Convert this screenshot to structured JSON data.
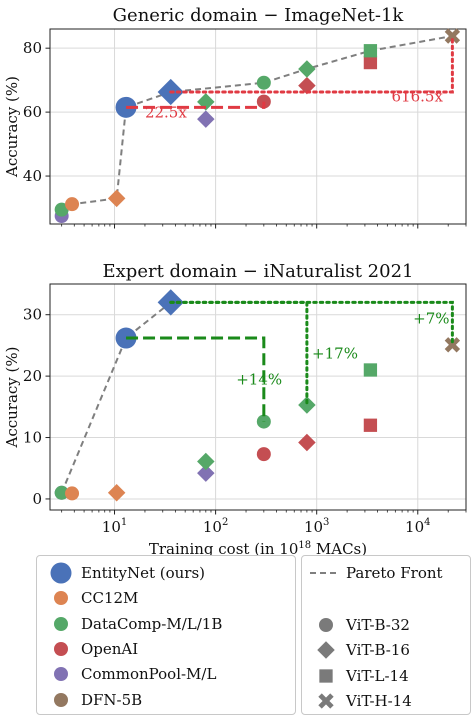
{
  "colors": {
    "entitynet": "#4a72b8",
    "cc12m": "#dd8452",
    "datacomp": "#55a868",
    "openai": "#c44e52",
    "commonpool": "#8172b3",
    "dfn": "#937860",
    "pareto": "#7f7f7f",
    "red_annot": "#e03a43",
    "green_annot": "#2ca02c",
    "darkgreen_annot": "#1a8a1a"
  },
  "chart_data": [
    {
      "type": "scatter",
      "title": "Generic domain − ImageNet-1k",
      "xlabel": "",
      "ylabel": "Accuracy (%)",
      "xscale": "log",
      "xlim": [
        2.3,
        30000
      ],
      "ylim": [
        25,
        86
      ],
      "yticks": [
        40,
        60,
        80
      ],
      "xticks": [
        10,
        100,
        1000,
        10000
      ],
      "show_xtick_labels": false,
      "grid": true,
      "points": [
        {
          "series": "CommonPool-M/L",
          "arch": "ViT-B-32",
          "x": 3,
          "y": 27.5
        },
        {
          "series": "DataComp-M/L/1B",
          "arch": "ViT-B-32",
          "x": 3,
          "y": 29.5
        },
        {
          "series": "CC12M",
          "arch": "ViT-B-32",
          "x": 3.8,
          "y": 31.2
        },
        {
          "series": "CC12M",
          "arch": "ViT-B-16",
          "x": 10.5,
          "y": 33
        },
        {
          "series": "EntityNet (ours)",
          "arch": "ViT-B-32",
          "x": 13,
          "y": 61.5
        },
        {
          "series": "EntityNet (ours)",
          "arch": "ViT-B-16",
          "x": 36,
          "y": 66.3
        },
        {
          "series": "CommonPool-M/L",
          "arch": "ViT-B-16",
          "x": 80,
          "y": 57.8
        },
        {
          "series": "DataComp-M/L/1B",
          "arch": "ViT-B-16",
          "x": 80,
          "y": 63.2
        },
        {
          "series": "OpenAI",
          "arch": "ViT-B-32",
          "x": 300,
          "y": 63.3
        },
        {
          "series": "DataComp-M/L/1B",
          "arch": "ViT-B-32",
          "x": 300,
          "y": 69.2
        },
        {
          "series": "OpenAI",
          "arch": "ViT-B-16",
          "x": 800,
          "y": 68.3
        },
        {
          "series": "DataComp-M/L/1B",
          "arch": "ViT-B-16",
          "x": 800,
          "y": 73.5
        },
        {
          "series": "OpenAI",
          "arch": "ViT-L-14",
          "x": 3400,
          "y": 75.5
        },
        {
          "series": "DataComp-M/L/1B",
          "arch": "ViT-L-14",
          "x": 3400,
          "y": 79.2
        },
        {
          "series": "DFN-5B",
          "arch": "ViT-H-14",
          "x": 22000,
          "y": 83.8
        }
      ],
      "pareto": [
        [
          3,
          29.5
        ],
        [
          3.8,
          31.2
        ],
        [
          10.5,
          33
        ],
        [
          13,
          61.5
        ],
        [
          36,
          66.3
        ],
        [
          300,
          69.2
        ],
        [
          800,
          73.5
        ],
        [
          3400,
          79.2
        ],
        [
          22000,
          83.8
        ]
      ],
      "annotations": [
        {
          "text": "22.5x",
          "color": "red",
          "style": "dashed",
          "path": [
            [
              13,
              61.5
            ],
            [
              300,
              61.5
            ],
            [
              300,
              63.3
            ]
          ],
          "text_x": 20,
          "text_y": 58.3
        },
        {
          "text": "616.5x",
          "color": "red",
          "style": "dotted",
          "path": [
            [
              36,
              66.3
            ],
            [
              22000,
              66.3
            ],
            [
              22000,
              83.8
            ]
          ],
          "text_x": 5500,
          "text_y": 63.3
        }
      ]
    },
    {
      "type": "scatter",
      "title": "Expert domain − iNaturalist 2021",
      "xlabel": "Training cost (in 10<sup>18</sup> MACs)",
      "ylabel": "Accuracy (%)",
      "xscale": "log",
      "xlim": [
        2.3,
        30000
      ],
      "ylim": [
        -1.8,
        35
      ],
      "yticks": [
        0,
        10,
        20,
        30
      ],
      "xticks": [
        10,
        100,
        1000,
        10000
      ],
      "show_xtick_labels": true,
      "grid": true,
      "points": [
        {
          "series": "CommonPool-M/L",
          "arch": "ViT-B-32",
          "x": 3,
          "y": 1.0
        },
        {
          "series": "DataComp-M/L/1B",
          "arch": "ViT-B-32",
          "x": 3,
          "y": 1.0
        },
        {
          "series": "CC12M",
          "arch": "ViT-B-32",
          "x": 3.8,
          "y": 0.9
        },
        {
          "series": "CC12M",
          "arch": "ViT-B-16",
          "x": 10.5,
          "y": 1.0
        },
        {
          "series": "EntityNet (ours)",
          "arch": "ViT-B-32",
          "x": 13,
          "y": 26.2
        },
        {
          "series": "EntityNet (ours)",
          "arch": "ViT-B-16",
          "x": 36,
          "y": 32
        },
        {
          "series": "CommonPool-M/L",
          "arch": "ViT-B-16",
          "x": 80,
          "y": 4.2
        },
        {
          "series": "DataComp-M/L/1B",
          "arch": "ViT-B-16",
          "x": 80,
          "y": 6.1
        },
        {
          "series": "OpenAI",
          "arch": "ViT-B-32",
          "x": 300,
          "y": 7.3
        },
        {
          "series": "DataComp-M/L/1B",
          "arch": "ViT-B-32",
          "x": 300,
          "y": 12.6
        },
        {
          "series": "OpenAI",
          "arch": "ViT-B-16",
          "x": 800,
          "y": 9.2
        },
        {
          "series": "DataComp-M/L/1B",
          "arch": "ViT-B-16",
          "x": 800,
          "y": 15.3
        },
        {
          "series": "OpenAI",
          "arch": "ViT-L-14",
          "x": 3400,
          "y": 12.0
        },
        {
          "series": "DataComp-M/L/1B",
          "arch": "ViT-L-14",
          "x": 3400,
          "y": 21.0
        },
        {
          "series": "DFN-5B",
          "arch": "ViT-H-14",
          "x": 22000,
          "y": 25.1
        }
      ],
      "pareto": [
        [
          3,
          1.0
        ],
        [
          13,
          26.2
        ],
        [
          36,
          32
        ]
      ],
      "annotations": [
        {
          "text": "+14%",
          "color": "darkgreen",
          "style": "dashed",
          "path": [
            [
              13,
              26.2
            ],
            [
              300,
              26.2
            ],
            [
              300,
              12.6
            ]
          ],
          "text_x": 160,
          "text_y": 18.6
        },
        {
          "text": "+17%",
          "color": "darkgreen",
          "style": "dotted",
          "path": [
            [
              36,
              32
            ],
            [
              800,
              32
            ],
            [
              800,
              15.3
            ]
          ],
          "text_x": 900,
          "text_y": 22.9
        },
        {
          "text": "+7%",
          "color": "darkgreen",
          "style": "dotted",
          "path": [
            [
              36,
              32
            ],
            [
              22000,
              32
            ],
            [
              22000,
              25.1
            ]
          ],
          "text_x": 9000,
          "text_y": 28.6
        }
      ]
    }
  ],
  "legend": {
    "datasets": [
      {
        "key": "entitynet",
        "label": "EntityNet (ours)"
      },
      {
        "key": "cc12m",
        "label": "CC12M"
      },
      {
        "key": "datacomp",
        "label": "DataComp-M/L/1B"
      },
      {
        "key": "openai",
        "label": "OpenAI"
      },
      {
        "key": "commonpool",
        "label": "CommonPool-M/L"
      },
      {
        "key": "dfn",
        "label": "DFN-5B"
      }
    ],
    "pareto_label": "Pareto Front",
    "archs": [
      {
        "shape": "circle",
        "label": "ViT-B-32"
      },
      {
        "shape": "diamond",
        "label": "ViT-B-16"
      },
      {
        "shape": "square",
        "label": "ViT-L-14"
      },
      {
        "shape": "x",
        "label": "ViT-H-14"
      }
    ]
  }
}
